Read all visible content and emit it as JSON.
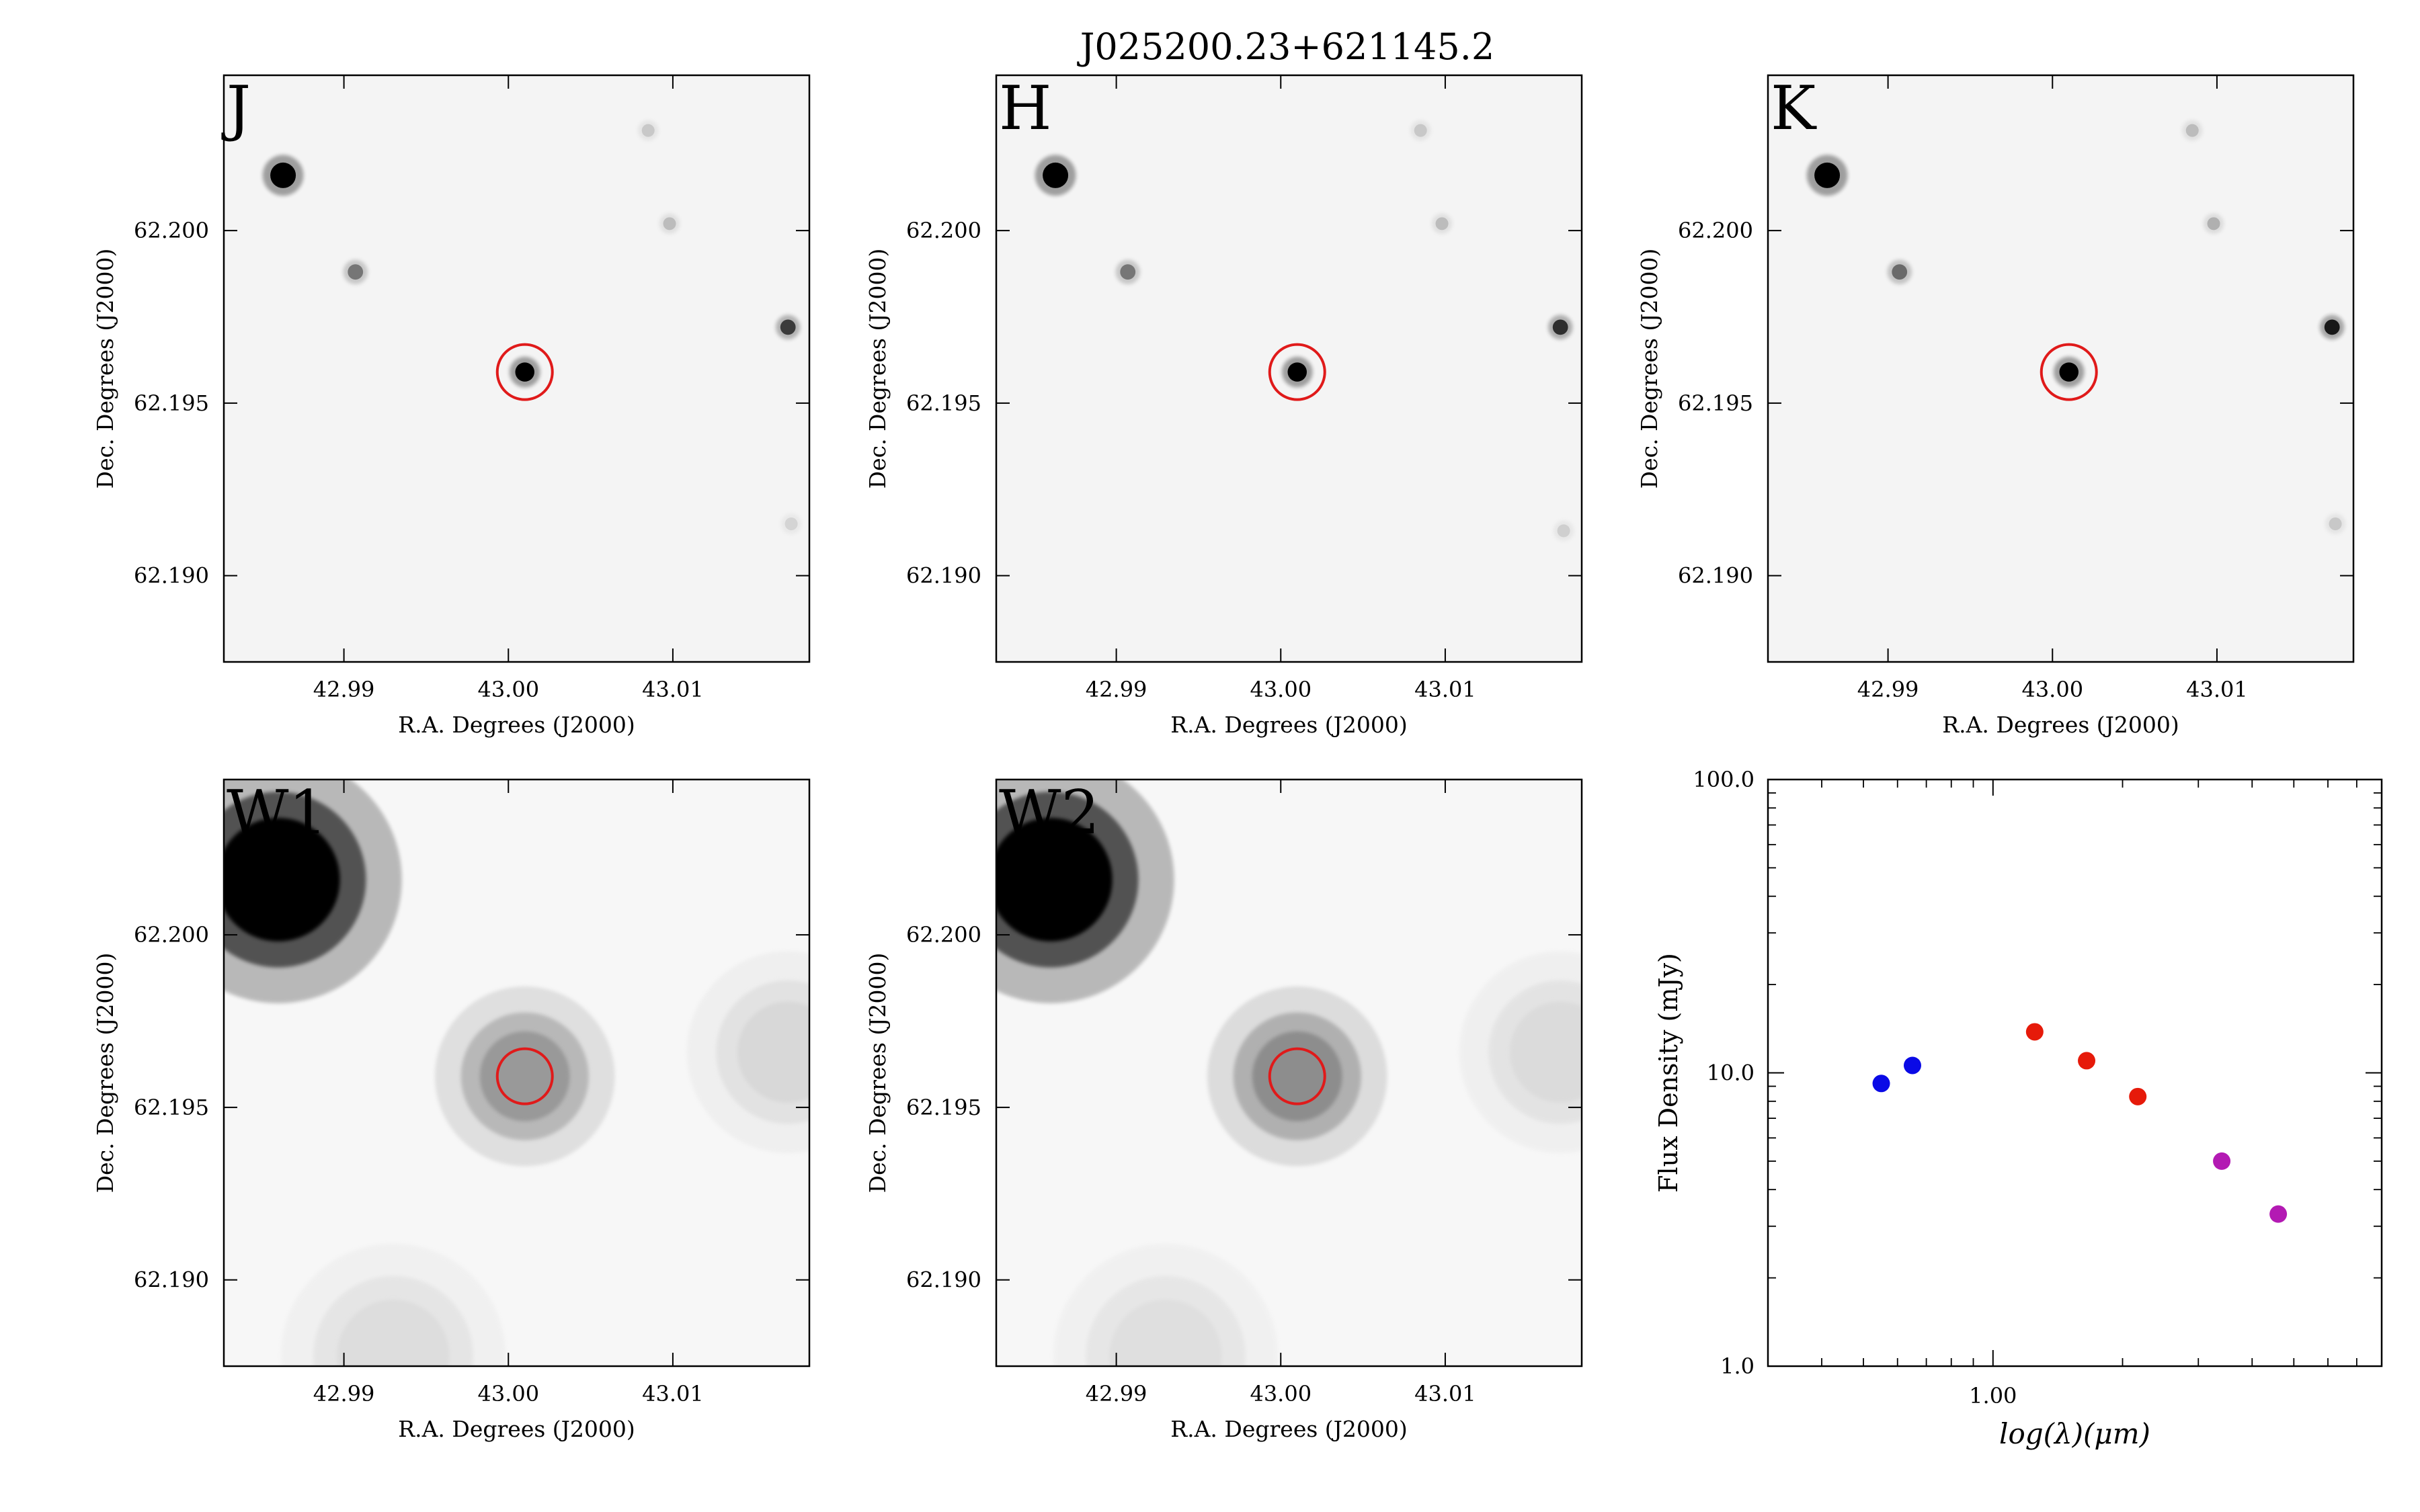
{
  "figure_title": "J025200.23+621145.2",
  "marker_color": "#e01a1a",
  "band_label_color": "#ff33ff",
  "chart_data": [
    {
      "type": "heatmap",
      "panel": "J",
      "band_label": "J",
      "xlabel": "R.A. Degrees (J2000)",
      "ylabel": "Dec. Degrees (J2000)",
      "xlim": [
        42.9827,
        43.0183
      ],
      "ylim": [
        62.1875,
        62.2045
      ],
      "xticks": [
        "42.99",
        "43.00",
        "43.01"
      ],
      "yticks": [
        "62.200",
        "62.195",
        "62.190"
      ],
      "xtick_values": [
        42.99,
        43.0,
        43.01
      ],
      "ytick_values": [
        62.2,
        62.195,
        62.19
      ],
      "target": {
        "ra": 43.001,
        "dec": 62.1959
      },
      "sources": [
        {
          "ra": 42.9863,
          "dec": 62.2016,
          "strength": 1.0,
          "size": 1.0
        },
        {
          "ra": 42.9907,
          "dec": 62.1988,
          "strength": 0.5,
          "size": 0.6
        },
        {
          "ra": 43.001,
          "dec": 62.1959,
          "strength": 1.0,
          "size": 0.75
        },
        {
          "ra": 43.017,
          "dec": 62.1972,
          "strength": 0.75,
          "size": 0.6
        },
        {
          "ra": 43.0098,
          "dec": 62.2002,
          "strength": 0.2,
          "size": 0.5
        },
        {
          "ra": 43.0085,
          "dec": 62.2029,
          "strength": 0.15,
          "size": 0.5
        },
        {
          "ra": 43.0172,
          "dec": 62.1915,
          "strength": 0.1,
          "size": 0.5
        }
      ]
    },
    {
      "type": "heatmap",
      "panel": "H",
      "band_label": "H",
      "xlabel": "R.A. Degrees (J2000)",
      "ylabel": "Dec. Degrees (J2000)",
      "xlim": [
        42.9827,
        43.0183
      ],
      "ylim": [
        62.1875,
        62.2045
      ],
      "xticks": [
        "42.99",
        "43.00",
        "43.01"
      ],
      "yticks": [
        "62.200",
        "62.195",
        "62.190"
      ],
      "xtick_values": [
        42.99,
        43.0,
        43.01
      ],
      "ytick_values": [
        62.2,
        62.195,
        62.19
      ],
      "target": {
        "ra": 43.001,
        "dec": 62.1959
      },
      "sources": [
        {
          "ra": 42.9863,
          "dec": 62.2016,
          "strength": 1.0,
          "size": 1.0
        },
        {
          "ra": 42.9907,
          "dec": 62.1988,
          "strength": 0.5,
          "size": 0.6
        },
        {
          "ra": 43.001,
          "dec": 62.1959,
          "strength": 1.0,
          "size": 0.75
        },
        {
          "ra": 43.017,
          "dec": 62.1972,
          "strength": 0.8,
          "size": 0.6
        },
        {
          "ra": 43.0098,
          "dec": 62.2002,
          "strength": 0.2,
          "size": 0.5
        },
        {
          "ra": 43.0085,
          "dec": 62.2029,
          "strength": 0.15,
          "size": 0.5
        },
        {
          "ra": 43.0172,
          "dec": 62.1913,
          "strength": 0.12,
          "size": 0.5
        }
      ]
    },
    {
      "type": "heatmap",
      "panel": "K",
      "band_label": "K",
      "xlabel": "R.A. Degrees (J2000)",
      "ylabel": "Dec. Degrees (J2000)",
      "xlim": [
        42.9827,
        43.0183
      ],
      "ylim": [
        62.1875,
        62.2045
      ],
      "xticks": [
        "42.99",
        "43.00",
        "43.01"
      ],
      "yticks": [
        "62.200",
        "62.195",
        "62.190"
      ],
      "xtick_values": [
        42.99,
        43.0,
        43.01
      ],
      "ytick_values": [
        62.2,
        62.195,
        62.19
      ],
      "target": {
        "ra": 43.001,
        "dec": 62.1959
      },
      "sources": [
        {
          "ra": 42.9863,
          "dec": 62.2016,
          "strength": 1.0,
          "size": 1.0
        },
        {
          "ra": 42.9907,
          "dec": 62.1988,
          "strength": 0.55,
          "size": 0.6
        },
        {
          "ra": 43.001,
          "dec": 62.1959,
          "strength": 1.0,
          "size": 0.75
        },
        {
          "ra": 43.017,
          "dec": 62.1972,
          "strength": 0.9,
          "size": 0.6
        },
        {
          "ra": 43.0098,
          "dec": 62.2002,
          "strength": 0.25,
          "size": 0.5
        },
        {
          "ra": 43.0085,
          "dec": 62.2029,
          "strength": 0.2,
          "size": 0.5
        },
        {
          "ra": 43.0172,
          "dec": 62.1915,
          "strength": 0.15,
          "size": 0.5
        }
      ]
    },
    {
      "type": "heatmap",
      "panel": "W1",
      "band_label": "W1",
      "xlabel": "R.A. Degrees (J2000)",
      "ylabel": "Dec. Degrees (J2000)",
      "xlim": [
        42.9827,
        43.0183
      ],
      "ylim": [
        62.1875,
        62.2045
      ],
      "xticks": [
        "42.99",
        "43.00",
        "43.01"
      ],
      "yticks": [
        "62.200",
        "62.195",
        "62.190"
      ],
      "xtick_values": [
        42.99,
        43.0,
        43.01
      ],
      "ytick_values": [
        62.2,
        62.195,
        62.19
      ],
      "target": {
        "ra": 43.001,
        "dec": 62.1959
      },
      "sources": [
        {
          "ra": 42.986,
          "dec": 62.2016,
          "strength": 1.0,
          "size": 2.2
        },
        {
          "ra": 43.001,
          "dec": 62.1959,
          "strength": 0.35,
          "size": 1.6
        },
        {
          "ra": 43.017,
          "dec": 62.1966,
          "strength": 0.08,
          "size": 1.8
        },
        {
          "ra": 42.993,
          "dec": 62.1878,
          "strength": 0.06,
          "size": 2.0
        }
      ]
    },
    {
      "type": "heatmap",
      "panel": "W2",
      "band_label": "W2",
      "xlabel": "R.A. Degrees (J2000)",
      "ylabel": "Dec. Degrees (J2000)",
      "xlim": [
        42.9827,
        43.0183
      ],
      "ylim": [
        62.1875,
        62.2045
      ],
      "xticks": [
        "42.99",
        "43.00",
        "43.01"
      ],
      "yticks": [
        "62.200",
        "62.195",
        "62.190"
      ],
      "xtick_values": [
        42.99,
        43.0,
        43.01
      ],
      "ytick_values": [
        62.2,
        62.195,
        62.19
      ],
      "target": {
        "ra": 43.001,
        "dec": 62.1959
      },
      "sources": [
        {
          "ra": 42.986,
          "dec": 62.2016,
          "strength": 1.0,
          "size": 2.2
        },
        {
          "ra": 43.001,
          "dec": 62.1959,
          "strength": 0.4,
          "size": 1.6
        },
        {
          "ra": 43.017,
          "dec": 62.1966,
          "strength": 0.07,
          "size": 1.8
        },
        {
          "ra": 42.993,
          "dec": 62.1878,
          "strength": 0.05,
          "size": 2.0
        }
      ]
    },
    {
      "type": "scatter",
      "panel": "SED",
      "xlabel": "log(λ)(μm)",
      "ylabel": "Flux Density (mJy)",
      "xscale": "log",
      "yscale": "log",
      "xlim": [
        0.3,
        8.0
      ],
      "ylim": [
        1.0,
        100.0
      ],
      "xticks": [
        "1.00"
      ],
      "xtick_values": [
        1.0
      ],
      "yticks": [
        "100.0",
        "10.0",
        "1.0"
      ],
      "ytick_values": [
        100.0,
        10.0,
        1.0
      ],
      "grid": false,
      "series": [
        {
          "color": "#0a0ae6",
          "x": [
            0.55,
            0.65
          ],
          "y": [
            9.2,
            10.6
          ]
        },
        {
          "color": "#e61a0a",
          "x": [
            1.25,
            1.65,
            2.17
          ],
          "y": [
            13.8,
            11.0,
            8.3
          ]
        },
        {
          "color": "#b31ab3",
          "x": [
            3.4,
            4.6
          ],
          "y": [
            5.0,
            3.3
          ]
        }
      ]
    }
  ]
}
